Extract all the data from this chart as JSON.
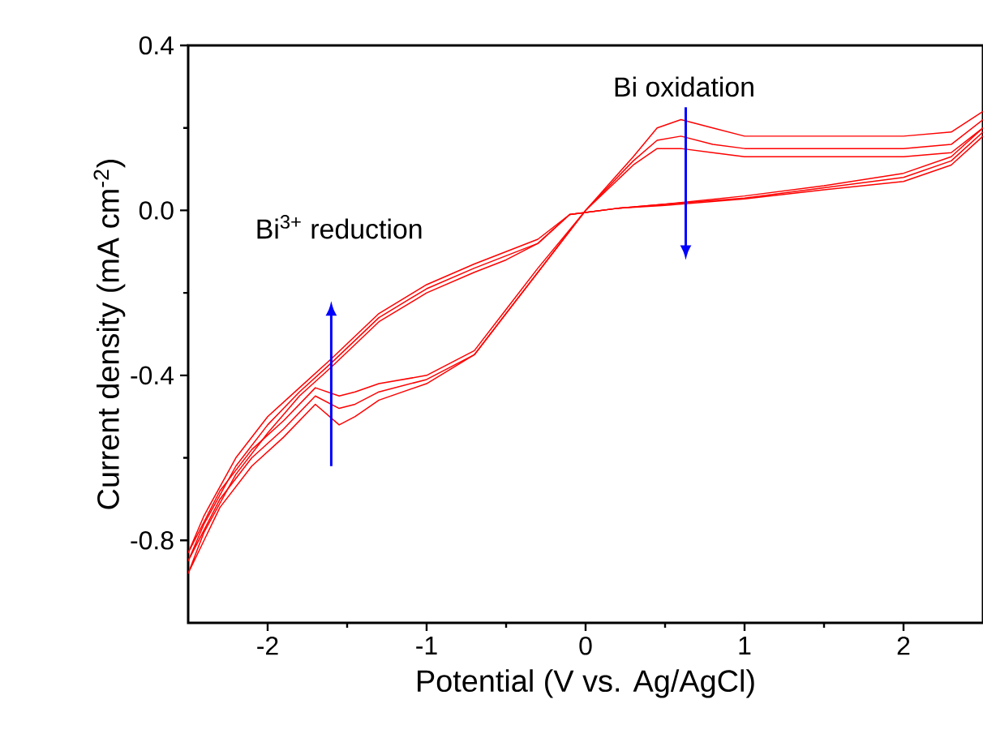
{
  "chart_data": {
    "type": "line",
    "xlabel": "Potential (V vs. Ag/AgCl)",
    "ylabel": "Current density (mA cm$^{-2}$)",
    "xlim": [
      -2.5,
      2.5
    ],
    "ylim": [
      -1.0,
      0.4
    ],
    "xticks": [
      -2,
      -1,
      0,
      1,
      2
    ],
    "yticks": [
      {
        "value": -0.8,
        "label": "-0.8"
      },
      {
        "value": -0.4,
        "label": "-0.4"
      },
      {
        "value": 0.0,
        "label": "0.0"
      },
      {
        "value": 0.4,
        "label": "0.4"
      }
    ],
    "grid": false,
    "marker": "none",
    "line_style": "solid",
    "annotations": [
      "Bi$^{3+}$ reduction",
      "Bi oxidation"
    ],
    "series": [
      {
        "color": "#ff0000",
        "x": [
          2.5,
          2.3,
          2.0,
          1.4,
          1.0,
          0.8,
          0.6,
          0.45,
          0.3,
          0.0,
          -0.3,
          -0.5,
          -0.7,
          -1.0,
          -1.3,
          -1.45,
          -1.55,
          -1.7,
          -1.9,
          -2.1,
          -2.3,
          -2.5,
          -2.4,
          -2.2,
          -2.0,
          -1.8,
          -1.6,
          -1.3,
          -1.0,
          -0.7,
          -0.5,
          -0.3,
          -0.1,
          0.2,
          0.5,
          1.0,
          1.5,
          2.0,
          2.3,
          2.5
        ],
        "values": [
          0.24,
          0.19,
          0.18,
          0.18,
          0.18,
          0.2,
          0.22,
          0.2,
          0.13,
          0.0,
          -0.15,
          -0.25,
          -0.35,
          -0.42,
          -0.46,
          -0.5,
          -0.52,
          -0.47,
          -0.55,
          -0.62,
          -0.72,
          -0.88,
          -0.78,
          -0.64,
          -0.54,
          -0.45,
          -0.38,
          -0.27,
          -0.2,
          -0.15,
          -0.12,
          -0.08,
          -0.01,
          0.005,
          0.015,
          0.035,
          0.06,
          0.09,
          0.13,
          0.2
        ]
      },
      {
        "color": "#ff0000",
        "x": [
          2.5,
          2.3,
          2.0,
          1.4,
          1.0,
          0.8,
          0.6,
          0.45,
          0.3,
          0.0,
          -0.3,
          -0.5,
          -0.7,
          -1.0,
          -1.3,
          -1.45,
          -1.55,
          -1.7,
          -1.9,
          -2.1,
          -2.3,
          -2.5,
          -2.4,
          -2.2,
          -2.0,
          -1.8,
          -1.6,
          -1.3,
          -1.0,
          -0.7,
          -0.5,
          -0.3,
          -0.1,
          0.2,
          0.5,
          1.0,
          1.5,
          2.0,
          2.3,
          2.5
        ],
        "values": [
          0.22,
          0.16,
          0.15,
          0.15,
          0.15,
          0.16,
          0.18,
          0.17,
          0.12,
          0.0,
          -0.15,
          -0.25,
          -0.35,
          -0.41,
          -0.44,
          -0.47,
          -0.48,
          -0.45,
          -0.53,
          -0.6,
          -0.7,
          -0.85,
          -0.76,
          -0.62,
          -0.52,
          -0.44,
          -0.37,
          -0.26,
          -0.19,
          -0.14,
          -0.11,
          -0.08,
          -0.01,
          0.005,
          0.015,
          0.03,
          0.055,
          0.08,
          0.12,
          0.19
        ]
      },
      {
        "color": "#ff0000",
        "x": [
          2.5,
          2.3,
          2.0,
          1.4,
          1.0,
          0.8,
          0.6,
          0.45,
          0.3,
          0.0,
          -0.3,
          -0.5,
          -0.7,
          -1.0,
          -1.3,
          -1.45,
          -1.55,
          -1.7,
          -1.9,
          -2.1,
          -2.3,
          -2.5,
          -2.4,
          -2.2,
          -2.0,
          -1.8,
          -1.6,
          -1.3,
          -1.0,
          -0.7,
          -0.5,
          -0.3,
          -0.1,
          0.2,
          0.5,
          1.0,
          1.5,
          2.0,
          2.3,
          2.5
        ],
        "values": [
          0.2,
          0.14,
          0.13,
          0.13,
          0.13,
          0.14,
          0.15,
          0.15,
          0.11,
          0.0,
          -0.14,
          -0.24,
          -0.34,
          -0.4,
          -0.42,
          -0.44,
          -0.45,
          -0.43,
          -0.51,
          -0.58,
          -0.68,
          -0.83,
          -0.74,
          -0.6,
          -0.5,
          -0.43,
          -0.36,
          -0.25,
          -0.18,
          -0.13,
          -0.1,
          -0.07,
          -0.01,
          0.005,
          0.012,
          0.028,
          0.05,
          0.07,
          0.11,
          0.18
        ]
      }
    ]
  }
}
